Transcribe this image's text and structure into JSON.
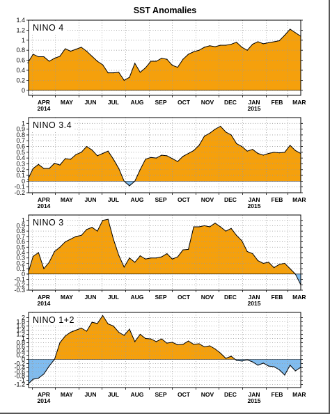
{
  "figure": {
    "title": "SST Anomalies",
    "colors": {
      "positive": "#f5a00c",
      "negative": "#80bcef",
      "line": "#000000",
      "grid": "#9a9a9a"
    }
  },
  "chart_data": [
    {
      "type": "area",
      "title": "NINO 4",
      "x_labels": [
        "APR",
        "MAY",
        "JUN",
        "JUL",
        "AUG",
        "SEP",
        "OCT",
        "NOV",
        "DEC",
        "JAN",
        "FEB",
        "MAR"
      ],
      "x_year_labels": [
        {
          "month": "APR",
          "year": "2014"
        },
        {
          "month": "JAN",
          "year": "2015"
        }
      ],
      "x_range": [
        "2014-03-27",
        "2015-03-18"
      ],
      "ylim": [
        -0.1,
        1.4
      ],
      "yticks": [
        "0",
        "0.2",
        "0.4",
        "0.6",
        "0.8",
        "1",
        "1.2",
        "1.4"
      ],
      "grid": true,
      "points": [
        [
          "2014-03-26",
          0.55
        ],
        [
          "2014-04-02",
          0.72
        ],
        [
          "2014-04-09",
          0.67
        ],
        [
          "2014-04-16",
          0.67
        ],
        [
          "2014-04-23",
          0.58
        ],
        [
          "2014-04-30",
          0.64
        ],
        [
          "2014-05-07",
          0.68
        ],
        [
          "2014-05-14",
          0.83
        ],
        [
          "2014-05-21",
          0.78
        ],
        [
          "2014-05-28",
          0.82
        ],
        [
          "2014-06-04",
          0.86
        ],
        [
          "2014-06-11",
          0.78
        ],
        [
          "2014-06-18",
          0.68
        ],
        [
          "2014-06-25",
          0.58
        ],
        [
          "2014-07-02",
          0.51
        ],
        [
          "2014-07-09",
          0.35
        ],
        [
          "2014-07-16",
          0.35
        ],
        [
          "2014-07-23",
          0.36
        ],
        [
          "2014-07-30",
          0.2
        ],
        [
          "2014-08-06",
          0.26
        ],
        [
          "2014-08-13",
          0.54
        ],
        [
          "2014-08-20",
          0.36
        ],
        [
          "2014-08-27",
          0.45
        ],
        [
          "2014-09-03",
          0.58
        ],
        [
          "2014-09-10",
          0.58
        ],
        [
          "2014-09-17",
          0.64
        ],
        [
          "2014-09-24",
          0.62
        ],
        [
          "2014-10-01",
          0.5
        ],
        [
          "2014-10-08",
          0.46
        ],
        [
          "2014-10-15",
          0.62
        ],
        [
          "2014-10-22",
          0.72
        ],
        [
          "2014-10-29",
          0.77
        ],
        [
          "2014-11-05",
          0.8
        ],
        [
          "2014-11-12",
          0.86
        ],
        [
          "2014-11-19",
          0.89
        ],
        [
          "2014-11-26",
          0.87
        ],
        [
          "2014-12-03",
          0.9
        ],
        [
          "2014-12-10",
          0.9
        ],
        [
          "2014-12-17",
          0.92
        ],
        [
          "2014-12-24",
          0.96
        ],
        [
          "2014-12-31",
          0.86
        ],
        [
          "2015-01-07",
          0.8
        ],
        [
          "2015-01-14",
          0.92
        ],
        [
          "2015-01-21",
          0.97
        ],
        [
          "2015-01-28",
          0.93
        ],
        [
          "2015-02-04",
          0.95
        ],
        [
          "2015-02-11",
          0.97
        ],
        [
          "2015-02-18",
          0.99
        ],
        [
          "2015-02-25",
          1.1
        ],
        [
          "2015-03-04",
          1.22
        ],
        [
          "2015-03-11",
          1.15
        ],
        [
          "2015-03-18",
          1.08
        ]
      ]
    },
    {
      "type": "area",
      "title": "NINO 3.4",
      "x_labels": [
        "APR",
        "MAY",
        "JUN",
        "JUL",
        "AUG",
        "SEP",
        "OCT",
        "NOV",
        "DEC",
        "JAN",
        "FEB",
        "MAR"
      ],
      "x_year_labels": [
        {
          "month": "APR",
          "year": "2014"
        },
        {
          "month": "JAN",
          "year": "2015"
        }
      ],
      "x_range": [
        "2014-03-27",
        "2015-03-18"
      ],
      "ylim": [
        -0.2,
        1.1
      ],
      "yticks": [
        "-0.2",
        "-0.1",
        "0",
        "0.1",
        "0.2",
        "0.3",
        "0.4",
        "0.5",
        "0.6",
        "0.7",
        "0.8",
        "0.9",
        "1"
      ],
      "grid": true,
      "points": [
        [
          "2014-03-26",
          0.03
        ],
        [
          "2014-04-02",
          0.22
        ],
        [
          "2014-04-09",
          0.29
        ],
        [
          "2014-04-16",
          0.22
        ],
        [
          "2014-04-23",
          0.22
        ],
        [
          "2014-04-30",
          0.31
        ],
        [
          "2014-05-07",
          0.28
        ],
        [
          "2014-05-14",
          0.39
        ],
        [
          "2014-05-21",
          0.38
        ],
        [
          "2014-05-28",
          0.46
        ],
        [
          "2014-06-04",
          0.5
        ],
        [
          "2014-06-11",
          0.6
        ],
        [
          "2014-06-18",
          0.54
        ],
        [
          "2014-06-25",
          0.44
        ],
        [
          "2014-07-02",
          0.48
        ],
        [
          "2014-07-09",
          0.52
        ],
        [
          "2014-07-16",
          0.38
        ],
        [
          "2014-07-23",
          0.22
        ],
        [
          "2014-07-30",
          0.0
        ],
        [
          "2014-08-06",
          -0.08
        ],
        [
          "2014-08-13",
          0.0
        ],
        [
          "2014-08-20",
          0.2
        ],
        [
          "2014-08-27",
          0.38
        ],
        [
          "2014-09-03",
          0.41
        ],
        [
          "2014-09-10",
          0.4
        ],
        [
          "2014-09-17",
          0.45
        ],
        [
          "2014-09-24",
          0.44
        ],
        [
          "2014-10-01",
          0.39
        ],
        [
          "2014-10-08",
          0.34
        ],
        [
          "2014-10-15",
          0.43
        ],
        [
          "2014-10-22",
          0.48
        ],
        [
          "2014-10-29",
          0.53
        ],
        [
          "2014-11-05",
          0.62
        ],
        [
          "2014-11-12",
          0.78
        ],
        [
          "2014-11-19",
          0.83
        ],
        [
          "2014-11-26",
          0.9
        ],
        [
          "2014-12-03",
          0.95
        ],
        [
          "2014-12-10",
          0.85
        ],
        [
          "2014-12-17",
          0.8
        ],
        [
          "2014-12-24",
          0.65
        ],
        [
          "2014-12-31",
          0.6
        ],
        [
          "2015-01-07",
          0.52
        ],
        [
          "2015-01-14",
          0.55
        ],
        [
          "2015-01-21",
          0.48
        ],
        [
          "2015-01-28",
          0.45
        ],
        [
          "2015-02-04",
          0.48
        ],
        [
          "2015-02-11",
          0.5
        ],
        [
          "2015-02-18",
          0.49
        ],
        [
          "2015-02-25",
          0.5
        ],
        [
          "2015-03-04",
          0.62
        ],
        [
          "2015-03-11",
          0.53
        ],
        [
          "2015-03-18",
          0.48
        ]
      ]
    },
    {
      "type": "area",
      "title": "NINO 3",
      "x_labels": [
        "APR",
        "MAY",
        "JUN",
        "JUL",
        "AUG",
        "SEP",
        "OCT",
        "NOV",
        "DEC",
        "JAN",
        "FEB",
        "MAR"
      ],
      "x_year_labels": [
        {
          "month": "APR",
          "year": "2014"
        },
        {
          "month": "JAN",
          "year": "2015"
        }
      ],
      "x_range": [
        "2014-03-27",
        "2015-03-18"
      ],
      "ylim": [
        -0.3,
        1.1
      ],
      "yticks": [
        "-0.3",
        "-0.2",
        "-0.1",
        "0",
        "0.1",
        "0.2",
        "0.3",
        "0.4",
        "0.5",
        "0.6",
        "0.7",
        "0.8",
        "0.9",
        "1"
      ],
      "grid": true,
      "points": [
        [
          "2014-03-26",
          0.0
        ],
        [
          "2014-04-02",
          0.33
        ],
        [
          "2014-04-09",
          0.4
        ],
        [
          "2014-04-16",
          0.1
        ],
        [
          "2014-04-23",
          0.22
        ],
        [
          "2014-04-30",
          0.42
        ],
        [
          "2014-05-07",
          0.5
        ],
        [
          "2014-05-14",
          0.6
        ],
        [
          "2014-05-21",
          0.65
        ],
        [
          "2014-05-28",
          0.7
        ],
        [
          "2014-06-04",
          0.72
        ],
        [
          "2014-06-11",
          0.83
        ],
        [
          "2014-06-18",
          0.87
        ],
        [
          "2014-06-25",
          0.8
        ],
        [
          "2014-07-02",
          1.0
        ],
        [
          "2014-07-09",
          1.02
        ],
        [
          "2014-07-16",
          0.65
        ],
        [
          "2014-07-23",
          0.35
        ],
        [
          "2014-07-30",
          0.13
        ],
        [
          "2014-08-06",
          0.3
        ],
        [
          "2014-08-13",
          0.22
        ],
        [
          "2014-08-20",
          0.34
        ],
        [
          "2014-08-27",
          0.28
        ],
        [
          "2014-09-03",
          0.3
        ],
        [
          "2014-09-10",
          0.3
        ],
        [
          "2014-09-17",
          0.32
        ],
        [
          "2014-09-24",
          0.38
        ],
        [
          "2014-10-01",
          0.28
        ],
        [
          "2014-10-08",
          0.32
        ],
        [
          "2014-10-15",
          0.45
        ],
        [
          "2014-10-22",
          0.46
        ],
        [
          "2014-10-29",
          0.88
        ],
        [
          "2014-11-05",
          0.88
        ],
        [
          "2014-11-12",
          0.9
        ],
        [
          "2014-11-19",
          0.88
        ],
        [
          "2014-11-26",
          0.95
        ],
        [
          "2014-12-03",
          0.88
        ],
        [
          "2014-12-10",
          0.8
        ],
        [
          "2014-12-17",
          0.85
        ],
        [
          "2014-12-24",
          0.72
        ],
        [
          "2014-12-31",
          0.62
        ],
        [
          "2015-01-07",
          0.42
        ],
        [
          "2015-01-14",
          0.38
        ],
        [
          "2015-01-21",
          0.25
        ],
        [
          "2015-01-28",
          0.2
        ],
        [
          "2015-02-04",
          0.22
        ],
        [
          "2015-02-11",
          0.12
        ],
        [
          "2015-02-18",
          0.18
        ],
        [
          "2015-02-25",
          0.2
        ],
        [
          "2015-03-04",
          0.1
        ],
        [
          "2015-03-11",
          0.0
        ],
        [
          "2015-03-18",
          -0.2
        ]
      ]
    },
    {
      "type": "area",
      "title": "NINO 1+2",
      "x_labels": [
        "APR",
        "MAY",
        "JUN",
        "JUL",
        "AUG",
        "SEP",
        "OCT",
        "NOV",
        "DEC",
        "JAN",
        "FEB",
        "MAR"
      ],
      "x_year_labels": [
        {
          "month": "APR",
          "year": "2014"
        },
        {
          "month": "JAN",
          "year": "2015"
        }
      ],
      "x_range": [
        "2014-03-27",
        "2015-03-18"
      ],
      "ylim": [
        -1.35,
        2.25
      ],
      "yticks": [
        "-1.2",
        "-1",
        "-0.8",
        "-0.6",
        "-0.4",
        "-0.2",
        "0",
        "0.2",
        "0.4",
        "0.6",
        "0.8",
        "1",
        "1.2",
        "1.4",
        "1.6",
        "1.8",
        "2"
      ],
      "grid": true,
      "points": [
        [
          "2014-03-26",
          -1.2
        ],
        [
          "2014-04-02",
          -0.95
        ],
        [
          "2014-04-09",
          -0.9
        ],
        [
          "2014-04-16",
          -0.7
        ],
        [
          "2014-04-23",
          -0.32
        ],
        [
          "2014-04-30",
          0.0
        ],
        [
          "2014-05-07",
          0.8
        ],
        [
          "2014-05-14",
          1.12
        ],
        [
          "2014-05-21",
          1.3
        ],
        [
          "2014-05-28",
          1.4
        ],
        [
          "2014-06-04",
          1.5
        ],
        [
          "2014-06-11",
          1.35
        ],
        [
          "2014-06-18",
          1.78
        ],
        [
          "2014-06-25",
          1.72
        ],
        [
          "2014-07-02",
          2.1
        ],
        [
          "2014-07-09",
          1.7
        ],
        [
          "2014-07-16",
          1.6
        ],
        [
          "2014-07-23",
          1.3
        ],
        [
          "2014-07-30",
          1.15
        ],
        [
          "2014-08-06",
          1.45
        ],
        [
          "2014-08-13",
          0.85
        ],
        [
          "2014-08-20",
          1.2
        ],
        [
          "2014-08-27",
          1.0
        ],
        [
          "2014-09-03",
          0.98
        ],
        [
          "2014-09-10",
          0.85
        ],
        [
          "2014-09-17",
          0.98
        ],
        [
          "2014-09-24",
          0.78
        ],
        [
          "2014-10-01",
          0.82
        ],
        [
          "2014-10-08",
          0.7
        ],
        [
          "2014-10-15",
          0.72
        ],
        [
          "2014-10-22",
          0.88
        ],
        [
          "2014-10-29",
          0.72
        ],
        [
          "2014-11-05",
          0.75
        ],
        [
          "2014-11-12",
          0.6
        ],
        [
          "2014-11-19",
          0.65
        ],
        [
          "2014-11-26",
          0.5
        ],
        [
          "2014-12-03",
          0.3
        ],
        [
          "2014-12-10",
          0.05
        ],
        [
          "2014-12-17",
          0.15
        ],
        [
          "2014-12-24",
          -0.05
        ],
        [
          "2014-12-31",
          -0.08
        ],
        [
          "2015-01-07",
          -0.02
        ],
        [
          "2015-01-14",
          -0.12
        ],
        [
          "2015-01-21",
          -0.28
        ],
        [
          "2015-01-28",
          -0.18
        ],
        [
          "2015-02-04",
          -0.32
        ],
        [
          "2015-02-11",
          -0.35
        ],
        [
          "2015-02-18",
          -0.5
        ],
        [
          "2015-02-25",
          -0.75
        ],
        [
          "2015-03-04",
          -0.28
        ],
        [
          "2015-03-11",
          -0.55
        ],
        [
          "2015-03-18",
          -0.38
        ]
      ]
    }
  ]
}
